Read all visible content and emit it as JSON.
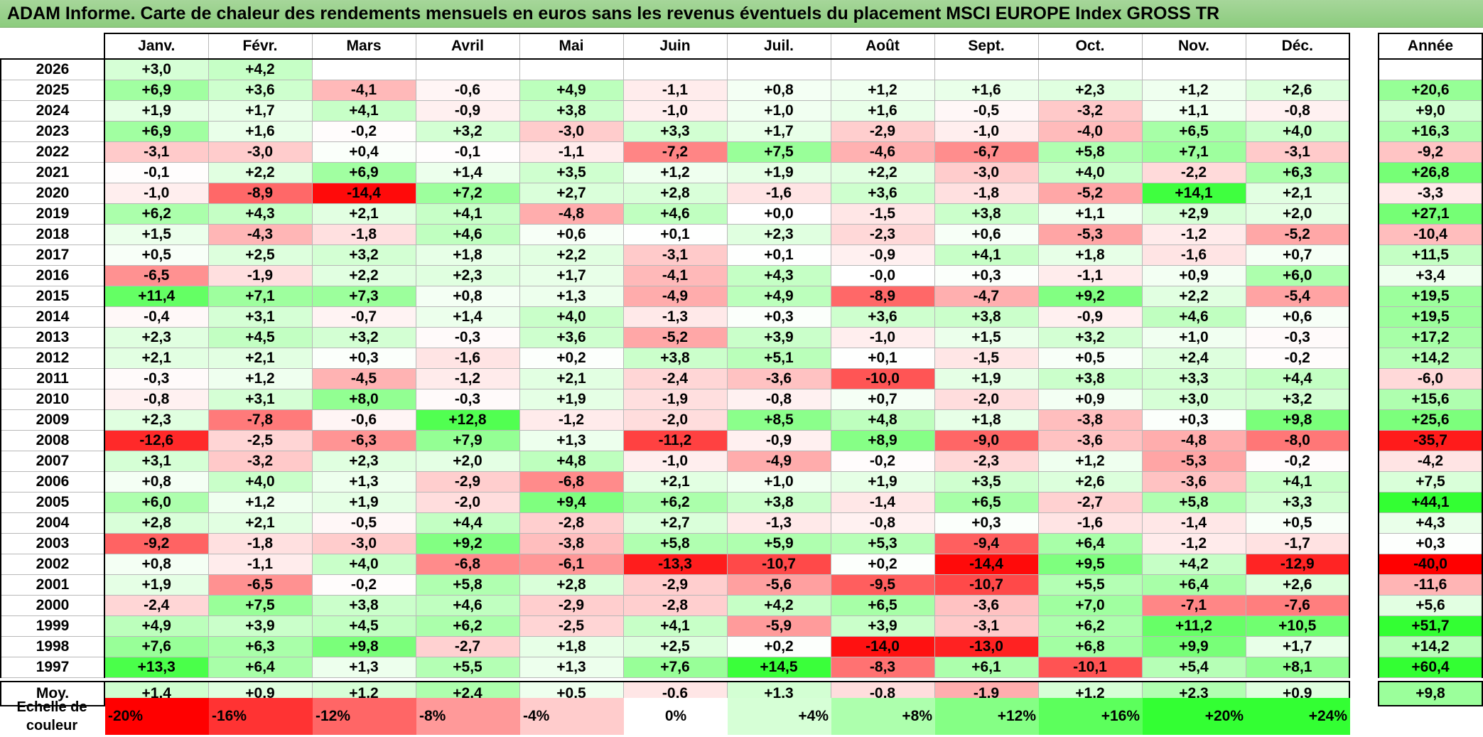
{
  "title": "ADAM Informe. Carte de chaleur des rendements mensuels en euros sans les revenus éventuels du placement MSCI EUROPE Index GROSS TR",
  "chart_data": {
    "type": "heatmap",
    "columns": [
      "Janv.",
      "Févr.",
      "Mars",
      "Avril",
      "Mai",
      "Juin",
      "Juil.",
      "Août",
      "Sept.",
      "Oct.",
      "Nov.",
      "Déc."
    ],
    "annual_header": "Année",
    "rows": [
      {
        "year": "2026",
        "values": [
          "+3,0",
          "+4,2",
          "",
          "",
          "",
          "",
          "",
          "",
          "",
          "",
          "",
          ""
        ],
        "annual": ""
      },
      {
        "year": "2025",
        "values": [
          "+6,9",
          "+3,6",
          "-4,1",
          "-0,6",
          "+4,9",
          "-1,1",
          "+0,8",
          "+1,2",
          "+1,6",
          "+2,3",
          "+1,2",
          "+2,6"
        ],
        "annual": "+20,6"
      },
      {
        "year": "2024",
        "values": [
          "+1,9",
          "+1,7",
          "+4,1",
          "-0,9",
          "+3,8",
          "-1,0",
          "+1,0",
          "+1,6",
          "-0,5",
          "-3,2",
          "+1,1",
          "-0,8"
        ],
        "annual": "+9,0"
      },
      {
        "year": "2023",
        "values": [
          "+6,9",
          "+1,6",
          "-0,2",
          "+3,2",
          "-3,0",
          "+3,3",
          "+1,7",
          "-2,9",
          "-1,0",
          "-4,0",
          "+6,5",
          "+4,0"
        ],
        "annual": "+16,3"
      },
      {
        "year": "2022",
        "values": [
          "-3,1",
          "-3,0",
          "+0,4",
          "-0,1",
          "-1,1",
          "-7,2",
          "+7,5",
          "-4,6",
          "-6,7",
          "+5,8",
          "+7,1",
          "-3,1"
        ],
        "annual": "-9,2"
      },
      {
        "year": "2021",
        "values": [
          "-0,1",
          "+2,2",
          "+6,9",
          "+1,4",
          "+3,5",
          "+1,2",
          "+1,9",
          "+2,2",
          "-3,0",
          "+4,0",
          "-2,2",
          "+6,3"
        ],
        "annual": "+26,8"
      },
      {
        "year": "2020",
        "values": [
          "-1,0",
          "-8,9",
          "-14,4",
          "+7,2",
          "+2,7",
          "+2,8",
          "-1,6",
          "+3,6",
          "-1,8",
          "-5,2",
          "+14,1",
          "+2,1"
        ],
        "annual": "-3,3"
      },
      {
        "year": "2019",
        "values": [
          "+6,2",
          "+4,3",
          "+2,1",
          "+4,1",
          "-4,8",
          "+4,6",
          "+0,0",
          "-1,5",
          "+3,8",
          "+1,1",
          "+2,9",
          "+2,0"
        ],
        "annual": "+27,1"
      },
      {
        "year": "2018",
        "values": [
          "+1,5",
          "-4,3",
          "-1,8",
          "+4,6",
          "+0,6",
          "+0,1",
          "+2,3",
          "-2,3",
          "+0,6",
          "-5,3",
          "-1,2",
          "-5,2"
        ],
        "annual": "-10,4"
      },
      {
        "year": "2017",
        "values": [
          "+0,5",
          "+2,5",
          "+3,2",
          "+1,8",
          "+2,2",
          "-3,1",
          "+0,1",
          "-0,9",
          "+4,1",
          "+1,8",
          "-1,6",
          "+0,7"
        ],
        "annual": "+11,5"
      },
      {
        "year": "2016",
        "values": [
          "-6,5",
          "-1,9",
          "+2,2",
          "+2,3",
          "+1,7",
          "-4,1",
          "+4,3",
          "-0,0",
          "+0,3",
          "-1,1",
          "+0,9",
          "+6,0"
        ],
        "annual": "+3,4"
      },
      {
        "year": "2015",
        "values": [
          "+11,4",
          "+7,1",
          "+7,3",
          "+0,8",
          "+1,3",
          "-4,9",
          "+4,9",
          "-8,9",
          "-4,7",
          "+9,2",
          "+2,2",
          "-5,4"
        ],
        "annual": "+19,5"
      },
      {
        "year": "2014",
        "values": [
          "-0,4",
          "+3,1",
          "-0,7",
          "+1,4",
          "+4,0",
          "-1,3",
          "+0,3",
          "+3,6",
          "+3,8",
          "-0,9",
          "+4,6",
          "+0,6"
        ],
        "annual": "+19,5"
      },
      {
        "year": "2013",
        "values": [
          "+2,3",
          "+4,5",
          "+3,2",
          "-0,3",
          "+3,6",
          "-5,2",
          "+3,9",
          "-1,0",
          "+1,5",
          "+3,2",
          "+1,0",
          "-0,3"
        ],
        "annual": "+17,2"
      },
      {
        "year": "2012",
        "values": [
          "+2,1",
          "+2,1",
          "+0,3",
          "-1,6",
          "+0,2",
          "+3,8",
          "+5,1",
          "+0,1",
          "-1,5",
          "+0,5",
          "+2,4",
          "-0,2"
        ],
        "annual": "+14,2"
      },
      {
        "year": "2011",
        "values": [
          "-0,3",
          "+1,2",
          "-4,5",
          "-1,2",
          "+2,1",
          "-2,4",
          "-3,6",
          "-10,0",
          "+1,9",
          "+3,8",
          "+3,3",
          "+4,4"
        ],
        "annual": "-6,0"
      },
      {
        "year": "2010",
        "values": [
          "-0,8",
          "+3,1",
          "+8,0",
          "-0,3",
          "+1,9",
          "-1,9",
          "-0,8",
          "+0,7",
          "-2,0",
          "+0,9",
          "+3,0",
          "+3,2"
        ],
        "annual": "+15,6"
      },
      {
        "year": "2009",
        "values": [
          "+2,3",
          "-7,8",
          "-0,6",
          "+12,8",
          "-1,2",
          "-2,0",
          "+8,5",
          "+4,8",
          "+1,8",
          "-3,8",
          "+0,3",
          "+9,8"
        ],
        "annual": "+25,6"
      },
      {
        "year": "2008",
        "values": [
          "-12,6",
          "-2,5",
          "-6,3",
          "+7,9",
          "+1,3",
          "-11,2",
          "-0,9",
          "+8,9",
          "-9,0",
          "-3,6",
          "-4,8",
          "-8,0"
        ],
        "annual": "-35,7"
      },
      {
        "year": "2007",
        "values": [
          "+3,1",
          "-3,2",
          "+2,3",
          "+2,0",
          "+4,8",
          "-1,0",
          "-4,9",
          "-0,2",
          "-2,3",
          "+1,2",
          "-5,3",
          "-0,2"
        ],
        "annual": "-4,2"
      },
      {
        "year": "2006",
        "values": [
          "+0,8",
          "+4,0",
          "+1,3",
          "-2,9",
          "-6,8",
          "+2,1",
          "+1,0",
          "+1,9",
          "+3,5",
          "+2,6",
          "-3,6",
          "+4,1"
        ],
        "annual": "+7,5"
      },
      {
        "year": "2005",
        "values": [
          "+6,0",
          "+1,2",
          "+1,9",
          "-2,0",
          "+9,4",
          "+6,2",
          "+3,8",
          "-1,4",
          "+6,5",
          "-2,7",
          "+5,8",
          "+3,3"
        ],
        "annual": "+44,1"
      },
      {
        "year": "2004",
        "values": [
          "+2,8",
          "+2,1",
          "-0,5",
          "+4,4",
          "-2,8",
          "+2,7",
          "-1,3",
          "-0,8",
          "+0,3",
          "-1,6",
          "-1,4",
          "+0,5"
        ],
        "annual": "+4,3"
      },
      {
        "year": "2003",
        "values": [
          "-9,2",
          "-1,8",
          "-3,0",
          "+9,2",
          "-3,8",
          "+5,8",
          "+5,9",
          "+5,3",
          "-9,4",
          "+6,4",
          "-1,2",
          "-1,7"
        ],
        "annual": "+0,3"
      },
      {
        "year": "2002",
        "values": [
          "+0,8",
          "-1,1",
          "+4,0",
          "-6,8",
          "-6,1",
          "-13,3",
          "-10,7",
          "+0,2",
          "-14,4",
          "+9,5",
          "+4,2",
          "-12,9"
        ],
        "annual": "-40,0"
      },
      {
        "year": "2001",
        "values": [
          "+1,9",
          "-6,5",
          "-0,2",
          "+5,8",
          "+2,8",
          "-2,9",
          "-5,6",
          "-9,5",
          "-10,7",
          "+5,5",
          "+6,4",
          "+2,6"
        ],
        "annual": "-11,6"
      },
      {
        "year": "2000",
        "values": [
          "-2,4",
          "+7,5",
          "+3,8",
          "+4,6",
          "-2,9",
          "-2,8",
          "+4,2",
          "+6,5",
          "-3,6",
          "+7,0",
          "-7,1",
          "-7,6"
        ],
        "annual": "+5,6"
      },
      {
        "year": "1999",
        "values": [
          "+4,9",
          "+3,9",
          "+4,5",
          "+6,2",
          "-2,5",
          "+4,1",
          "-5,9",
          "+3,9",
          "-3,1",
          "+6,2",
          "+11,2",
          "+10,5"
        ],
        "annual": "+51,7"
      },
      {
        "year": "1998",
        "values": [
          "+7,6",
          "+6,3",
          "+9,8",
          "-2,7",
          "+1,8",
          "+2,5",
          "+0,2",
          "-14,0",
          "-13,0",
          "+6,8",
          "+9,9",
          "+1,7"
        ],
        "annual": "+14,2"
      },
      {
        "year": "1997",
        "values": [
          "+13,3",
          "+6,4",
          "+1,3",
          "+5,5",
          "+1,3",
          "+7,6",
          "+14,5",
          "-8,3",
          "+6,1",
          "-10,1",
          "+5,4",
          "+8,1"
        ],
        "annual": "+60,4"
      }
    ],
    "average": {
      "label": "Moy.",
      "values": [
        "+1,4",
        "+0,9",
        "+1,2",
        "+2,4",
        "+0,5",
        "-0,6",
        "+1,3",
        "-0,8",
        "-1,9",
        "+1,2",
        "+2,3",
        "+0,9"
      ],
      "annual": "+9,8"
    },
    "scale_label": "Echelle de couleur",
    "scale": [
      "-20%",
      "-16%",
      "-12%",
      "-8%",
      "-4%",
      "0%",
      "+4%",
      "+8%",
      "+12%",
      "+16%",
      "+20%",
      "+24%"
    ],
    "scale_values": [
      -20,
      -16,
      -12,
      -8,
      -4,
      0,
      4,
      8,
      12,
      16,
      20,
      24
    ]
  },
  "colors": {
    "negative_max": "#ff0000",
    "neutral": "#ffffff",
    "positive_max": "#33ff33",
    "title_bg": "#96d08a"
  }
}
